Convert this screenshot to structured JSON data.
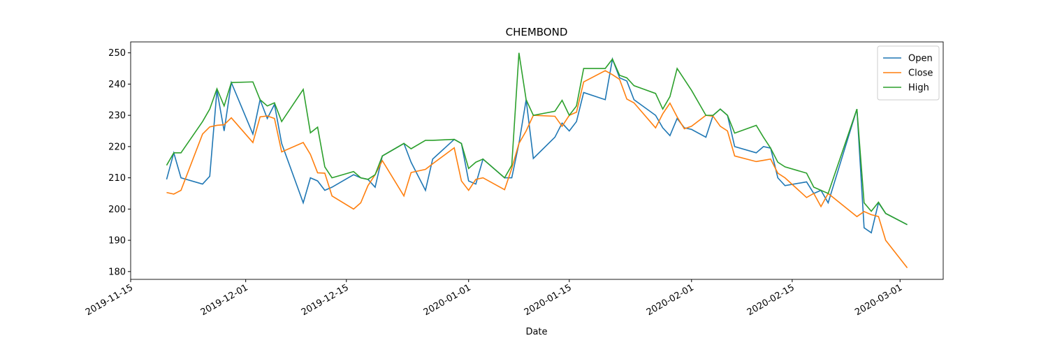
{
  "chart_data": {
    "type": "line",
    "title": "CHEMBOND",
    "xlabel": "Date",
    "x": [
      "2019-11-20",
      "2019-11-21",
      "2019-11-22",
      "2019-11-25",
      "2019-11-26",
      "2019-11-27",
      "2019-11-28",
      "2019-11-29",
      "2019-12-02",
      "2019-12-03",
      "2019-12-04",
      "2019-12-05",
      "2019-12-06",
      "2019-12-09",
      "2019-12-10",
      "2019-12-11",
      "2019-12-12",
      "2019-12-13",
      "2019-12-16",
      "2019-12-17",
      "2019-12-18",
      "2019-12-19",
      "2019-12-20",
      "2019-12-23",
      "2019-12-24",
      "2019-12-26",
      "2019-12-27",
      "2019-12-30",
      "2019-12-31",
      "2020-01-01",
      "2020-01-02",
      "2020-01-03",
      "2020-01-06",
      "2020-01-07",
      "2020-01-08",
      "2020-01-09",
      "2020-01-10",
      "2020-01-13",
      "2020-01-14",
      "2020-01-15",
      "2020-01-16",
      "2020-01-17",
      "2020-01-20",
      "2020-01-21",
      "2020-01-22",
      "2020-01-23",
      "2020-01-24",
      "2020-01-27",
      "2020-01-28",
      "2020-01-29",
      "2020-01-30",
      "2020-01-31",
      "2020-02-01",
      "2020-02-03",
      "2020-02-04",
      "2020-02-05",
      "2020-02-06",
      "2020-02-07",
      "2020-02-10",
      "2020-02-11",
      "2020-02-12",
      "2020-02-13",
      "2020-02-14",
      "2020-02-17",
      "2020-02-18",
      "2020-02-19",
      "2020-02-20",
      "2020-02-24",
      "2020-02-25",
      "2020-02-26",
      "2020-02-27",
      "2020-02-28",
      "2020-03-02"
    ],
    "series": [
      {
        "name": "Open",
        "color": "#1f77b4",
        "values": [
          209.5,
          218,
          210,
          208,
          210.5,
          238,
          225,
          240.5,
          224,
          235,
          229,
          233.5,
          221,
          202,
          210,
          209,
          206,
          207,
          211,
          210,
          209.5,
          207,
          217,
          221,
          215,
          206,
          216,
          222.3,
          221,
          209,
          208,
          216,
          210,
          210,
          221,
          235,
          216.2,
          223,
          227.5,
          225,
          228,
          237.3,
          235,
          248,
          242,
          241,
          235,
          230,
          226,
          223.5,
          229,
          226,
          225.5,
          223,
          230,
          232,
          230,
          220,
          218,
          220,
          219.5,
          210,
          207.5,
          208.7,
          205,
          206,
          202,
          232,
          194,
          192.4,
          202,
          198.6,
          195
        ]
      },
      {
        "name": "Close",
        "color": "#ff7f0e",
        "values": [
          205.3,
          204.8,
          206,
          224,
          226.3,
          226.8,
          227,
          229.2,
          221.3,
          229.5,
          229.8,
          229,
          218.3,
          221.3,
          217.5,
          211.6,
          211.5,
          204.2,
          200,
          202,
          207.5,
          211,
          215.5,
          204.2,
          211.7,
          212.7,
          214.5,
          219.6,
          209,
          206,
          209.5,
          210,
          206.2,
          213,
          221,
          225,
          230,
          229.7,
          226.5,
          230,
          231,
          240.7,
          244.3,
          243,
          241.5,
          235.2,
          234,
          226,
          230.5,
          233.9,
          229.5,
          225.7,
          226.5,
          230,
          229.7,
          226.5,
          225,
          217,
          215.2,
          215.6,
          216,
          211.5,
          210,
          203.7,
          205,
          200.8,
          205,
          197.6,
          199.2,
          198.2,
          197.6,
          190,
          181.2
        ]
      },
      {
        "name": "High",
        "color": "#2ca02c",
        "values": [
          214,
          218,
          218,
          228,
          232,
          238.5,
          233,
          240.5,
          240.7,
          235,
          233,
          234,
          228,
          238.3,
          224.4,
          226.2,
          213.5,
          210,
          212,
          210,
          209.5,
          211,
          217,
          221,
          219.3,
          222,
          222,
          222.3,
          221,
          213,
          215,
          216,
          210,
          214,
          250,
          235,
          230,
          231.3,
          234.8,
          230,
          233,
          245,
          245,
          248,
          242.8,
          242,
          239.5,
          237,
          232,
          236,
          245,
          241.5,
          238,
          230,
          230,
          232,
          230,
          224.3,
          226.8,
          223,
          219.5,
          215,
          213.5,
          211.5,
          207,
          206,
          205,
          232,
          202,
          199.3,
          202.2,
          198.6,
          195
        ]
      }
    ],
    "xlim": [
      "2019-11-15",
      "2020-03-07"
    ],
    "xticks": [
      "2019-11-15",
      "2019-12-01",
      "2019-12-15",
      "2020-01-01",
      "2020-01-15",
      "2020-02-01",
      "2020-02-15",
      "2020-03-01"
    ],
    "ylim": [
      177.5,
      253.5
    ],
    "yticks": [
      180,
      190,
      200,
      210,
      220,
      230,
      240,
      250
    ],
    "legend": "upper right"
  }
}
